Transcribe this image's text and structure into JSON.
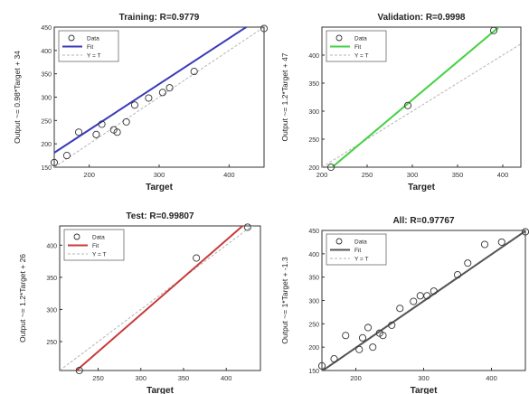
{
  "chart_data": [
    {
      "type": "scatter",
      "title": "Training: R=0.9779",
      "xlabel": "Target",
      "ylabel": "Output ~= 0.98*Target + 34",
      "xlim": [
        150,
        450
      ],
      "ylim": [
        150,
        450
      ],
      "xticks": [
        200,
        300,
        400
      ],
      "yticks": [
        150,
        200,
        250,
        300,
        350,
        400,
        450
      ],
      "grid": false,
      "legend_position": "top-left",
      "legend": [
        "Data",
        "Fit",
        "Y = T"
      ],
      "colors": {
        "data": "#333333",
        "fit": "#3a3ab8",
        "identity": "#b4b4b4"
      },
      "fit": {
        "slope": 0.98,
        "intercept": 34
      },
      "points": [
        [
          150,
          160
        ],
        [
          168,
          175
        ],
        [
          185,
          225
        ],
        [
          210,
          220
        ],
        [
          218,
          242
        ],
        [
          235,
          230
        ],
        [
          240,
          225
        ],
        [
          253,
          247
        ],
        [
          265,
          283
        ],
        [
          285,
          298
        ],
        [
          305,
          310
        ],
        [
          315,
          320
        ],
        [
          350,
          355
        ],
        [
          450,
          447
        ]
      ]
    },
    {
      "type": "scatter",
      "title": "Validation: R=0.9998",
      "xlabel": "Target",
      "ylabel": "Output ~= 1.2*Target + 47",
      "xlim": [
        200,
        420
      ],
      "ylim": [
        200,
        450
      ],
      "xticks": [
        200,
        250,
        300,
        350,
        400
      ],
      "yticks": [
        200,
        250,
        300,
        350,
        400
      ],
      "grid": false,
      "legend_position": "top-left",
      "legend": [
        "Data",
        "Fit",
        "Y = T"
      ],
      "colors": {
        "data": "#333333",
        "fit": "#43d143",
        "identity": "#b4b4b4"
      },
      "points": [
        [
          210,
          200
        ],
        [
          295,
          310
        ],
        [
          390,
          444
        ]
      ]
    },
    {
      "type": "scatter",
      "title": "Test: R=0.99807",
      "xlabel": "Target",
      "ylabel": "Output ~= 1.2*Target + 26",
      "xlim": [
        205,
        440
      ],
      "ylim": [
        205,
        430
      ],
      "xticks": [
        250,
        300,
        350,
        400
      ],
      "yticks": [
        250,
        300,
        350,
        400
      ],
      "grid": false,
      "legend_position": "top-left",
      "legend": [
        "Data",
        "Fit",
        "Y = T"
      ],
      "colors": {
        "data": "#333333",
        "fit": "#c83a3a",
        "identity": "#b4b4b4"
      },
      "points": [
        [
          228,
          205
        ],
        [
          365,
          380
        ],
        [
          425,
          428
        ]
      ]
    },
    {
      "type": "scatter",
      "title": "All: R=0.97767",
      "xlabel": "Target",
      "ylabel": "Output ~= 1*Target + -1.3",
      "xlim": [
        150,
        450
      ],
      "ylim": [
        150,
        450
      ],
      "xticks": [
        200,
        300,
        400
      ],
      "yticks": [
        150,
        200,
        250,
        300,
        350,
        400,
        450
      ],
      "grid": false,
      "legend_position": "top-left",
      "legend": [
        "Data",
        "Fit",
        "Y = T"
      ],
      "colors": {
        "data": "#333333",
        "fit": "#555555",
        "identity": "#b4b4b4"
      },
      "fit": {
        "slope": 1.0,
        "intercept": -1.3
      },
      "points": [
        [
          150,
          160
        ],
        [
          168,
          175
        ],
        [
          185,
          225
        ],
        [
          205,
          195
        ],
        [
          210,
          220
        ],
        [
          218,
          242
        ],
        [
          225,
          200
        ],
        [
          235,
          230
        ],
        [
          240,
          225
        ],
        [
          253,
          247
        ],
        [
          265,
          283
        ],
        [
          285,
          298
        ],
        [
          295,
          310
        ],
        [
          305,
          310
        ],
        [
          315,
          320
        ],
        [
          350,
          355
        ],
        [
          365,
          380
        ],
        [
          390,
          420
        ],
        [
          415,
          425
        ],
        [
          450,
          447
        ]
      ]
    }
  ]
}
